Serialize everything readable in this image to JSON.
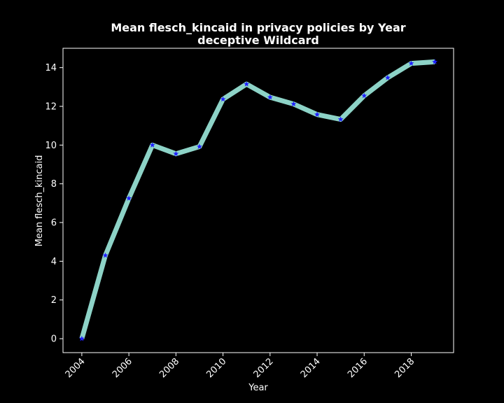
{
  "chart_data": {
    "type": "line",
    "title_line1": "Mean flesch_kincaid in privacy policies by Year",
    "title_line2": "deceptive Wildcard",
    "xlabel": "Year",
    "ylabel": "Mean flesch_kincaid",
    "x": [
      2004,
      2005,
      2006,
      2007,
      2008,
      2009,
      2010,
      2011,
      2012,
      2013,
      2014,
      2015,
      2016,
      2017,
      2018,
      2019
    ],
    "y": [
      0.0,
      4.3,
      7.25,
      10.0,
      9.55,
      9.92,
      12.37,
      13.15,
      12.47,
      12.12,
      11.58,
      11.33,
      12.55,
      13.48,
      14.22,
      14.3
    ],
    "xlim": [
      2003.2,
      2019.8
    ],
    "ylim": [
      -0.72,
      15.0
    ],
    "xticks": [
      2004,
      2006,
      2008,
      2010,
      2012,
      2014,
      2016,
      2018
    ],
    "yticks": [
      0,
      2,
      4,
      6,
      8,
      10,
      12,
      14
    ],
    "grid": false,
    "background_color": "#000000",
    "axes_color": "#ffffff",
    "line_color": "#8dd3c7",
    "marker_color": "#1f1fff",
    "marker": "star"
  }
}
